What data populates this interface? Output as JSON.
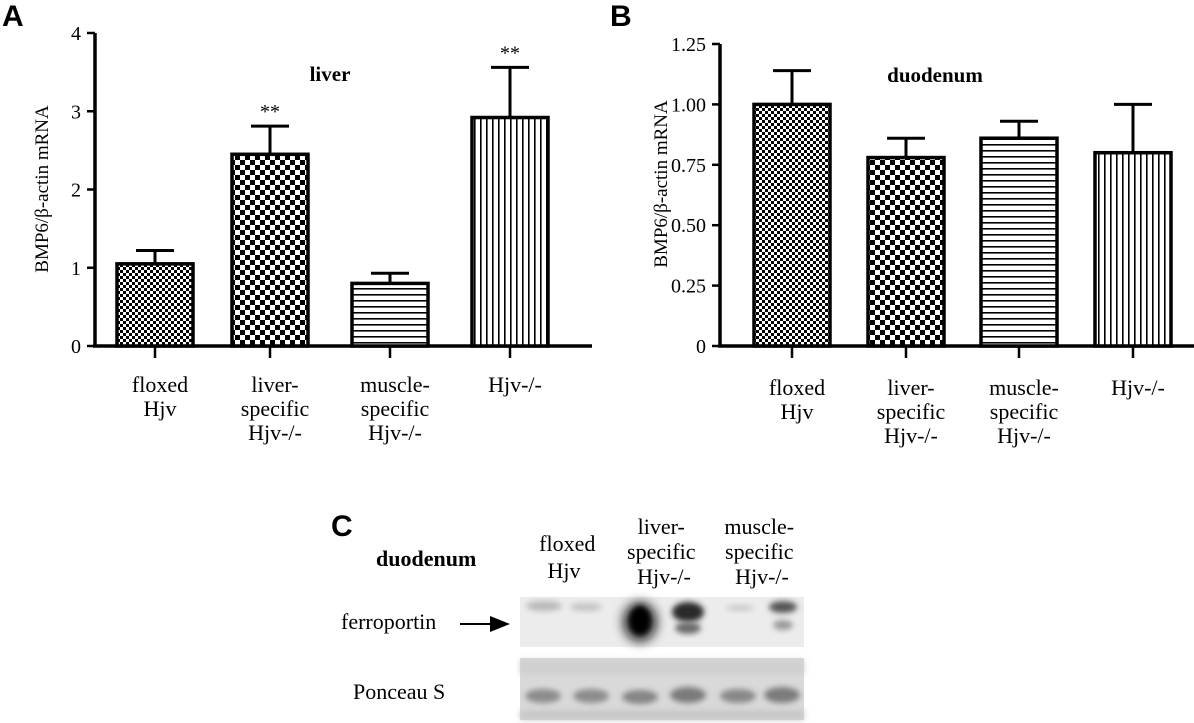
{
  "panels": {
    "A": {
      "letter": "A"
    },
    "B": {
      "letter": "B"
    },
    "C": {
      "letter": "C"
    }
  },
  "chart_data": [
    {
      "type": "bar",
      "panel": "A",
      "title": "liver",
      "ylabel": "BMP6/β-actin mRNA",
      "ylim": [
        0,
        4
      ],
      "yticks": [
        "0",
        "1",
        "2",
        "3",
        "4"
      ],
      "ytick_values": [
        0,
        1,
        2,
        3,
        4
      ],
      "categories": [
        {
          "lines": [
            "floxed",
            "Hjv"
          ]
        },
        {
          "lines": [
            "liver-",
            "specific",
            "Hjv-/-"
          ]
        },
        {
          "lines": [
            "muscle-",
            "specific",
            "Hjv-/-"
          ]
        },
        {
          "lines": [
            "Hjv-/-"
          ]
        }
      ],
      "values": [
        1.05,
        2.45,
        0.8,
        2.92
      ],
      "errors": [
        0.17,
        0.36,
        0.13,
        0.64
      ],
      "patterns": [
        "fine-check",
        "check",
        "hlines",
        "vlines"
      ],
      "annotations": [
        "",
        "**",
        "",
        "**"
      ]
    },
    {
      "type": "bar",
      "panel": "B",
      "title": "duodenum",
      "ylabel": "BMP6/β-actin mRNA",
      "ylim": [
        0,
        1.25
      ],
      "yticks": [
        "0",
        "0.25",
        "0.50",
        "0.75",
        "1.00",
        "1.25"
      ],
      "ytick_values": [
        0,
        0.25,
        0.5,
        0.75,
        1.0,
        1.25
      ],
      "categories": [
        {
          "lines": [
            "floxed",
            "Hjv"
          ]
        },
        {
          "lines": [
            "liver-",
            "specific",
            "Hjv-/-"
          ]
        },
        {
          "lines": [
            "muscle-",
            "specific",
            "Hjv-/-"
          ]
        },
        {
          "lines": [
            "Hjv-/-"
          ]
        }
      ],
      "values": [
        1.0,
        0.78,
        0.86,
        0.8
      ],
      "errors": [
        0.14,
        0.08,
        0.07,
        0.2
      ],
      "patterns": [
        "fine-check",
        "check",
        "hlines",
        "vlines"
      ],
      "annotations": [
        "",
        "",
        "",
        ""
      ]
    }
  ],
  "blot": {
    "title": "duodenum",
    "lanes": [
      {
        "lines": [
          "floxed",
          "Hjv"
        ]
      },
      {
        "lines": [
          "liver-",
          "specific",
          "Hjv-/-"
        ]
      },
      {
        "lines": [
          "muscle-",
          "specific",
          "Hjv-/-"
        ]
      }
    ],
    "rows": {
      "ferroportin": "ferroportin",
      "ponceau": "Ponceau S"
    }
  }
}
